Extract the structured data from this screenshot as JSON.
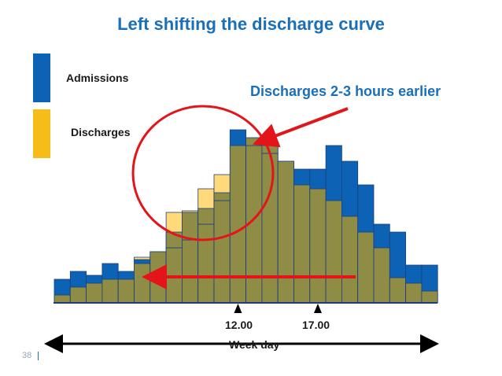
{
  "title": "Left shifting the discharge curve",
  "callout": "Discharges 2-3 hours earlier",
  "page_number": "38",
  "colors": {
    "admissions": "#0c62b5",
    "discharges_original": "#ffd97a",
    "overlap": "#8e8c45",
    "title": "#1a6fb8",
    "arrow_red": "#e3151a"
  },
  "chart_data": {
    "type": "bar",
    "xlabel": "Week day",
    "ylabel": "",
    "legend": [
      "Admissions",
      "Discharges"
    ],
    "ylim": [
      0,
      240
    ],
    "x_tick_labels": [
      {
        "hour_index": 11.5,
        "label": "12.00"
      },
      {
        "hour_index": 16.5,
        "label": "17.00"
      }
    ],
    "series": [
      {
        "name": "Admissions",
        "values": [
          30,
          40,
          35,
          50,
          40,
          55,
          65,
          70,
          80,
          100,
          130,
          220,
          200,
          190,
          180,
          170,
          170,
          200,
          180,
          150,
          100,
          90,
          48,
          48
        ]
      },
      {
        "name": "Discharges",
        "values": [
          10,
          20,
          25,
          30,
          30,
          50,
          65,
          90,
          115,
          120,
          140,
          200,
          210,
          200,
          180,
          150,
          145,
          130,
          110,
          90,
          70,
          32,
          25,
          15
        ]
      },
      {
        "name": "Discharges (original)",
        "values": [
          10,
          20,
          25,
          30,
          30,
          58,
          65,
          115,
          117,
          145,
          163,
          210,
          208,
          200,
          180,
          150,
          145,
          130,
          110,
          90,
          70,
          32,
          25,
          15
        ]
      }
    ],
    "annotations": [
      {
        "type": "ellipse",
        "around": "discharge peak"
      },
      {
        "type": "arrow",
        "direction": "left"
      }
    ]
  }
}
